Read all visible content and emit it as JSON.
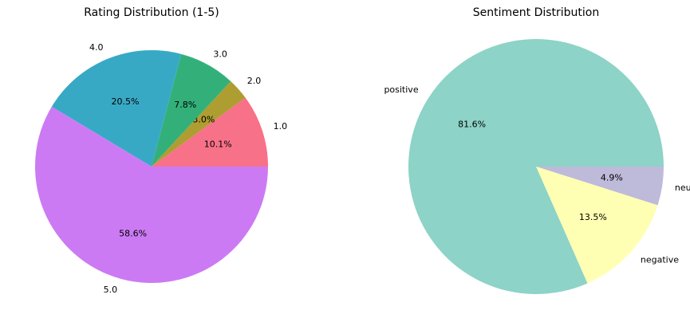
{
  "chart_data": [
    {
      "type": "pie",
      "title": "Rating Distribution (1-5)",
      "labels": [
        "1.0",
        "2.0",
        "3.0",
        "4.0",
        "5.0"
      ],
      "values": [
        10.1,
        3.0,
        7.8,
        20.5,
        58.6
      ],
      "autopct": [
        "10.1%",
        "3.0%",
        "7.8%",
        "20.5%",
        "58.6%"
      ],
      "colors": [
        "#f77189",
        "#ae9d31",
        "#33b07a",
        "#38a9c5",
        "#cc7af4"
      ],
      "start_angle_deg": 0,
      "direction": "counterclockwise"
    },
    {
      "type": "pie",
      "title": "Sentiment Distribution",
      "labels": [
        "neutral",
        "negative",
        "positive"
      ],
      "values": [
        4.9,
        13.5,
        81.6
      ],
      "autopct": [
        "4.9%",
        "13.5%",
        "81.6%"
      ],
      "colors": [
        "#bebada",
        "#ffffb3",
        "#8dd3c7"
      ],
      "start_angle_deg": 0,
      "direction": "clockwise"
    }
  ]
}
